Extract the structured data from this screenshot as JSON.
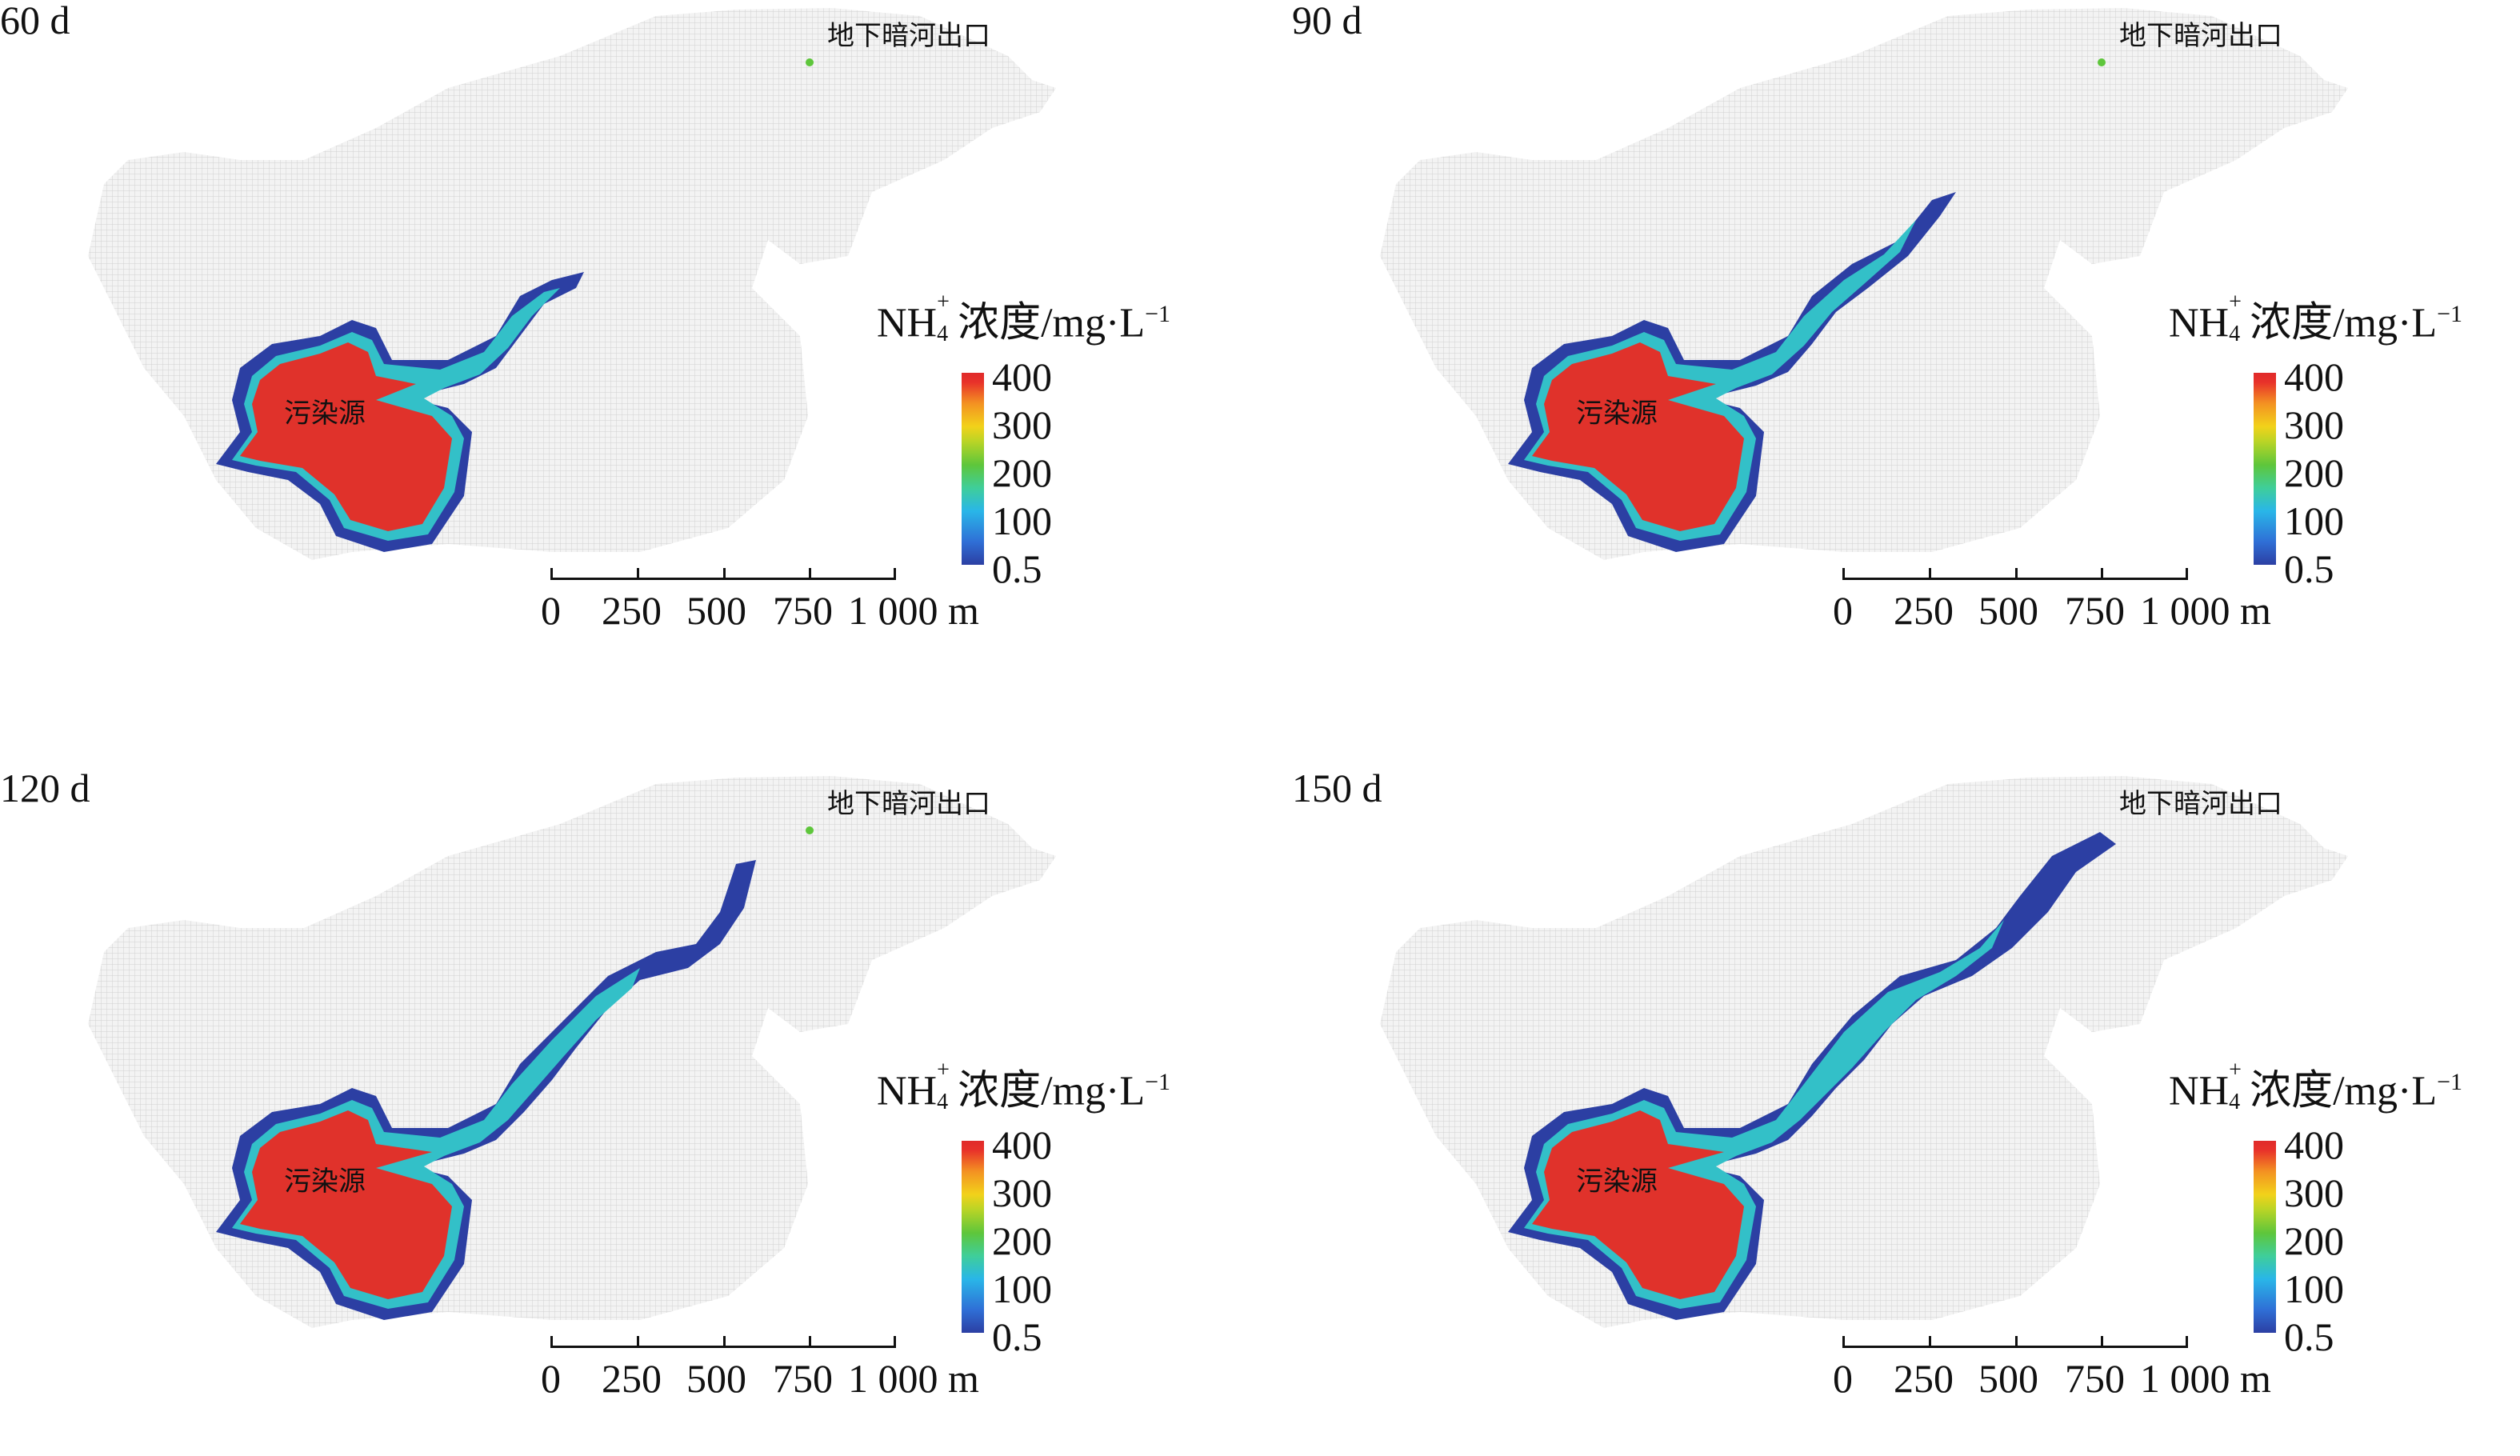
{
  "panels": [
    {
      "id": "p60",
      "time": "60 d"
    },
    {
      "id": "p90",
      "time": "90 d"
    },
    {
      "id": "p120",
      "time": "120 d"
    },
    {
      "id": "p150",
      "time": "150 d"
    }
  ],
  "labels": {
    "outlet": "地下暗河出口",
    "source": "污染源"
  },
  "legend": {
    "title_prefix": "NH",
    "title_sup": "+",
    "title_sub": "4",
    "title_suffix": "浓度/mg·L",
    "title_exp": "−1",
    "ticks": [
      "400",
      "300",
      "200",
      "100",
      "0.5"
    ]
  },
  "scale": {
    "ticks": [
      "0",
      "250",
      "500",
      "750",
      "1 000"
    ],
    "unit": "m"
  },
  "colors": {
    "domain": "#e6e6e6",
    "high": "#e0322b",
    "mid": "#5ec63b",
    "low": "#2f6fd6",
    "edge": "#2c3fa3"
  }
}
